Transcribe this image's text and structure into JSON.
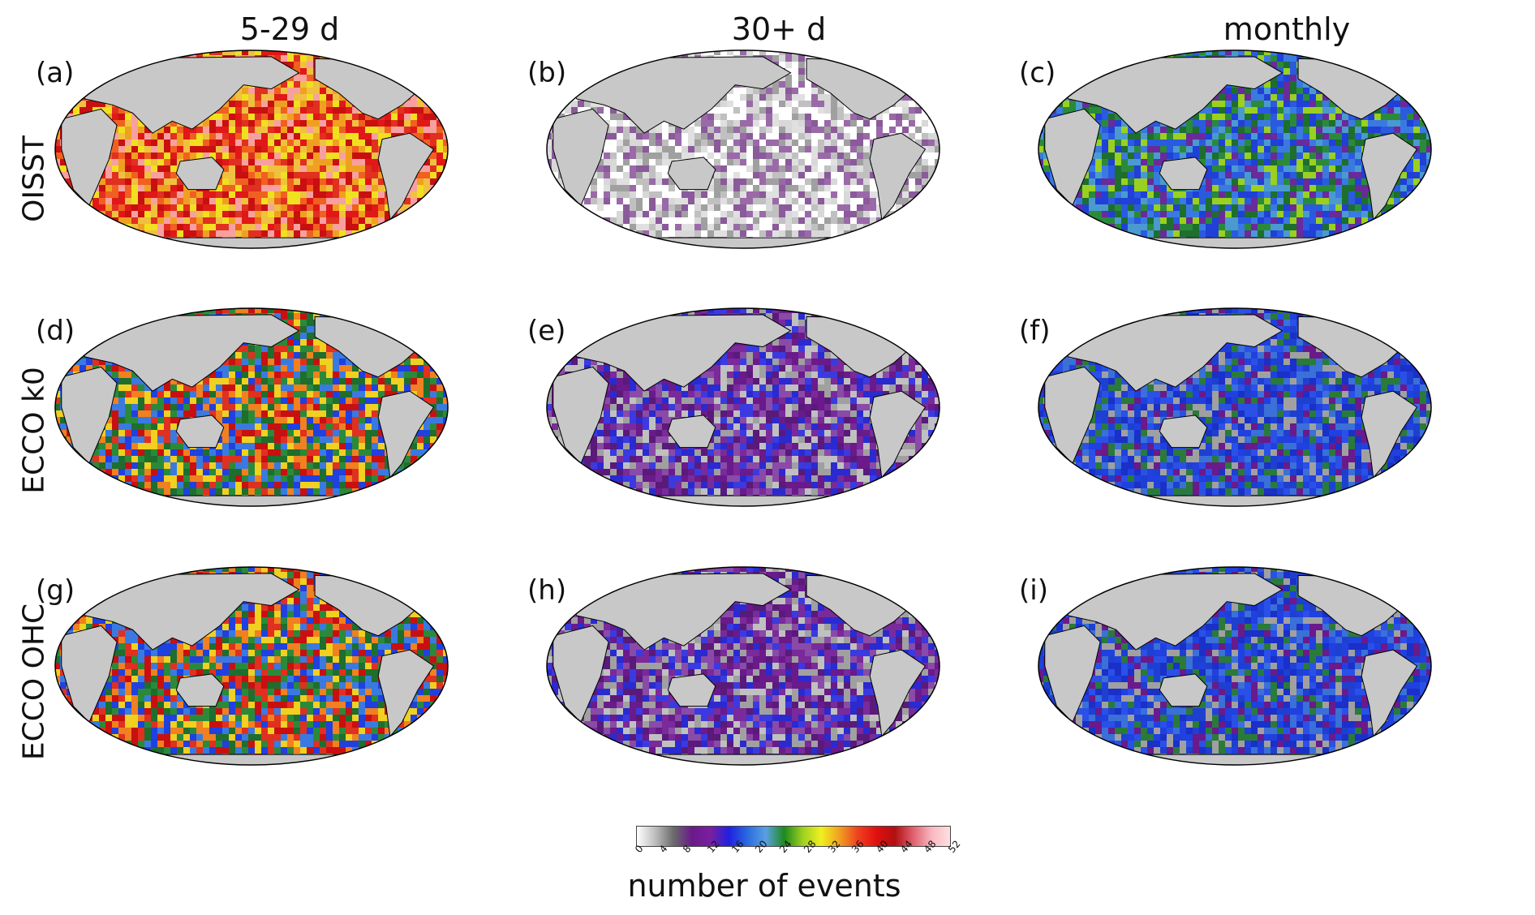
{
  "columns": [
    "5-29 d",
    "30+ d",
    "monthly"
  ],
  "rows": [
    "OISST",
    "ECCO k0",
    "ECCO OHC"
  ],
  "panels": [
    {
      "label": "(a)",
      "row": 0,
      "col": 0,
      "palette": "hot"
    },
    {
      "label": "(b)",
      "row": 0,
      "col": 1,
      "palette": "grey"
    },
    {
      "label": "(c)",
      "row": 0,
      "col": 2,
      "palette": "blue-green"
    },
    {
      "label": "(d)",
      "row": 1,
      "col": 0,
      "palette": "mixed"
    },
    {
      "label": "(e)",
      "row": 1,
      "col": 1,
      "palette": "purple"
    },
    {
      "label": "(f)",
      "row": 1,
      "col": 2,
      "palette": "blue"
    },
    {
      "label": "(g)",
      "row": 2,
      "col": 0,
      "palette": "mixed"
    },
    {
      "label": "(h)",
      "row": 2,
      "col": 1,
      "palette": "purple"
    },
    {
      "label": "(i)",
      "row": 2,
      "col": 2,
      "palette": "blue"
    }
  ],
  "colorbar": {
    "title": "number of events",
    "ticks": [
      "0",
      "4",
      "8",
      "12",
      "16",
      "20",
      "24",
      "28",
      "32",
      "36",
      "40",
      "44",
      "48",
      "52"
    ],
    "range": [
      0,
      52
    ],
    "colors": [
      "#ffffff",
      "#bdbdbd",
      "#6a6a6a",
      "#6a1a8a",
      "#7a1fa0",
      "#2020e0",
      "#2a6ae0",
      "#5aa0e0",
      "#1e8a1e",
      "#9ed020",
      "#f0f020",
      "#f0a020",
      "#f04020",
      "#e01010",
      "#b01010",
      "#e06070",
      "#f8b8c0",
      "#ffe0e0"
    ]
  },
  "colors": {
    "land": "#c8c8c8",
    "background": "#ffffff"
  }
}
